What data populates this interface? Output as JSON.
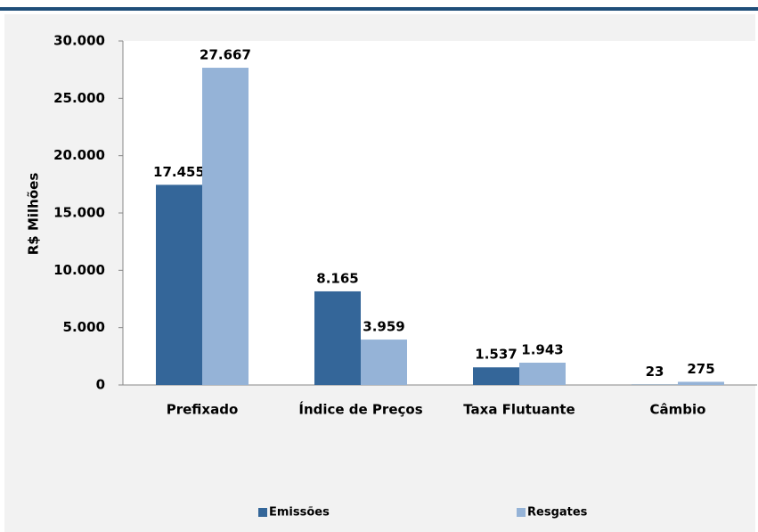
{
  "chart_data": {
    "type": "bar",
    "y_label": "R$ Milhões",
    "categories": [
      "Prefixado",
      "Índice de Preços",
      "Taxa Flutuante",
      "Câmbio"
    ],
    "series": [
      {
        "name": "Emissões",
        "color": "#346699",
        "values": [
          17455,
          8165,
          1537,
          23
        ],
        "value_labels": [
          "17.455",
          "8.165",
          "1.537",
          "23"
        ]
      },
      {
        "name": "Resgates",
        "color": "#95b3d7",
        "values": [
          27667,
          3959,
          1943,
          275
        ],
        "value_labels": [
          "27.667",
          "3.959",
          "1.943",
          "275"
        ]
      }
    ],
    "ylim": [
      0,
      30000
    ],
    "yticks": [
      0,
      {
        "value": 5000,
        "label": "5.000"
      },
      {
        "value": 10000,
        "label": "10.000"
      },
      {
        "value": 15000,
        "label": "15.000"
      },
      {
        "value": 20000,
        "label": "20.000"
      },
      {
        "value": 25000,
        "label": "25.000"
      },
      {
        "value": 30000,
        "label": "30.000"
      }
    ],
    "legend": "bottom"
  }
}
